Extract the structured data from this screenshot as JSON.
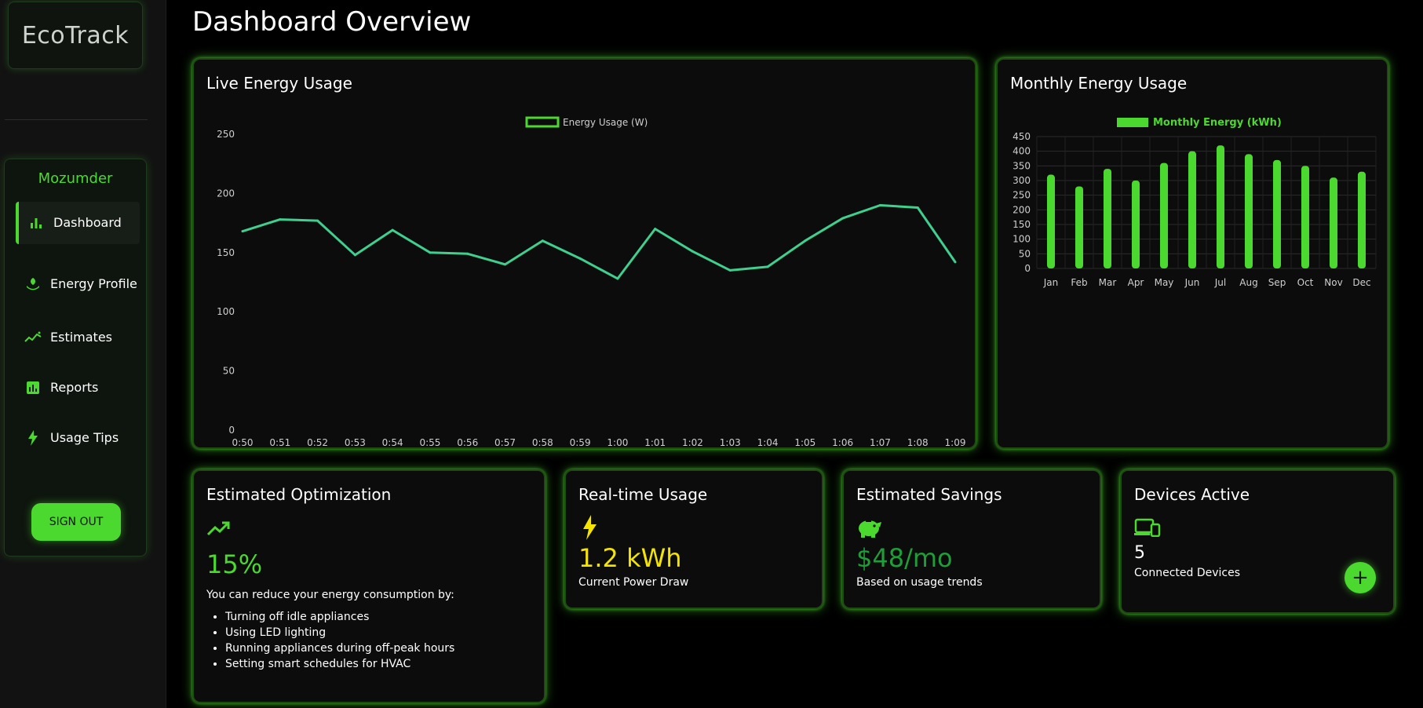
{
  "app": {
    "logo_prefix": "Eco",
    "logo_suffix": "Track"
  },
  "sidebar": {
    "user_name": "Mozumder",
    "items": [
      {
        "label": "Dashboard",
        "icon": "bar-chart-icon",
        "active": true
      },
      {
        "label": "Energy Profile",
        "icon": "leaf-hand-icon",
        "active": false
      },
      {
        "label": "Estimates",
        "icon": "trend-icon",
        "active": false
      },
      {
        "label": "Reports",
        "icon": "report-icon",
        "active": false
      },
      {
        "label": "Usage Tips",
        "icon": "bolt-icon",
        "active": false
      }
    ],
    "sign_out_label": "SIGN OUT"
  },
  "page": {
    "title": "Dashboard Overview"
  },
  "live_card": {
    "title": "Live Energy Usage"
  },
  "monthly_card": {
    "title": "Monthly Energy Usage"
  },
  "optimization": {
    "title": "Estimated Optimization",
    "value": "15%",
    "description": "You can reduce your energy consumption by:",
    "tips": [
      "Turning off idle appliances",
      "Using LED lighting",
      "Running appliances during off-peak hours",
      "Setting smart schedules for HVAC"
    ]
  },
  "realtime": {
    "title": "Real-time Usage",
    "value": "1.2 kWh",
    "caption": "Current Power Draw"
  },
  "savings": {
    "title": "Estimated Savings",
    "value": "$48/mo",
    "caption": "Based on usage trends"
  },
  "devices": {
    "title": "Devices Active",
    "value": "5",
    "caption": "Connected Devices",
    "add_label": "+"
  },
  "colors": {
    "accent": "#4cd92f",
    "line": "#3fcf8e",
    "yellow": "#f5e400",
    "savings_green": "#1f9d3a"
  },
  "chart_data": [
    {
      "type": "line",
      "title": "",
      "legend": "Energy Usage (W)",
      "legend_position": "top-center",
      "x": [
        "0:50",
        "0:51",
        "0:52",
        "0:53",
        "0:54",
        "0:55",
        "0:56",
        "0:57",
        "0:58",
        "0:59",
        "1:00",
        "1:01",
        "1:02",
        "1:03",
        "1:04",
        "1:05",
        "1:06",
        "1:07",
        "1:08",
        "1:09"
      ],
      "values": [
        168,
        178,
        177,
        148,
        169,
        150,
        149,
        140,
        160,
        145,
        128,
        170,
        151,
        135,
        138,
        160,
        179,
        190,
        188,
        142
      ],
      "ylim": [
        0,
        250
      ],
      "yticks": [
        0,
        50,
        100,
        150,
        200,
        250
      ],
      "grid": false
    },
    {
      "type": "bar",
      "title": "",
      "legend": "Monthly Energy (kWh)",
      "legend_position": "top-center",
      "categories": [
        "Jan",
        "Feb",
        "Mar",
        "Apr",
        "May",
        "Jun",
        "Jul",
        "Aug",
        "Sep",
        "Oct",
        "Nov",
        "Dec"
      ],
      "values": [
        320,
        280,
        340,
        300,
        360,
        400,
        420,
        390,
        370,
        350,
        310,
        330
      ],
      "ylim": [
        0,
        450
      ],
      "yticks": [
        0,
        50,
        100,
        150,
        200,
        250,
        300,
        350,
        400,
        450
      ],
      "grid": true
    }
  ]
}
